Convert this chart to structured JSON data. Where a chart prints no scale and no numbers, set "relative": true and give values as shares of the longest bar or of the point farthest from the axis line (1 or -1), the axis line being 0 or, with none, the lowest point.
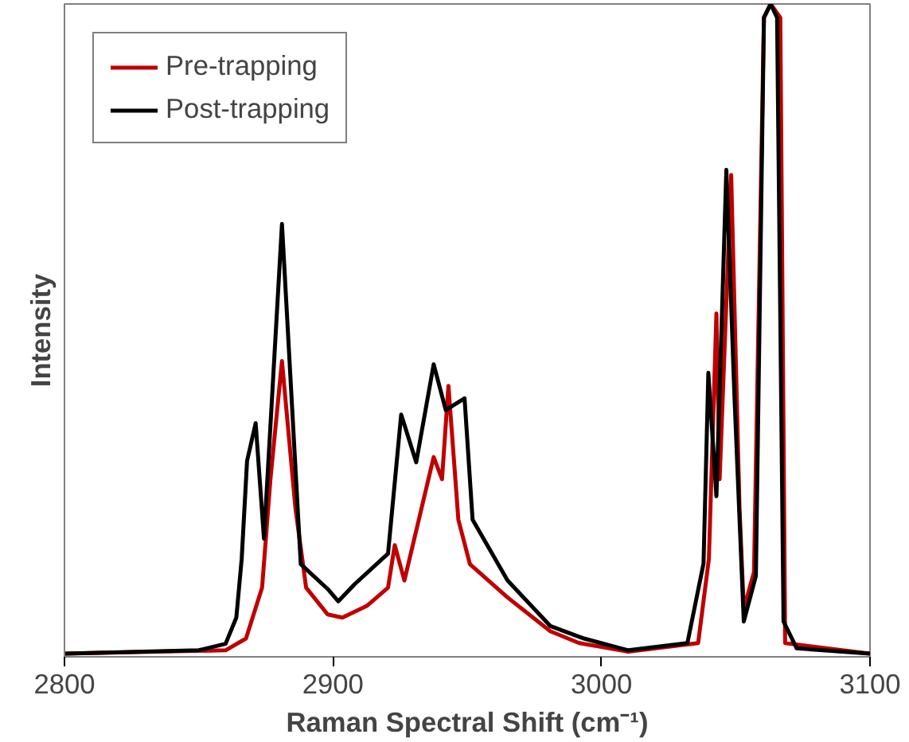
{
  "chart_data": {
    "type": "line",
    "relative": true,
    "xlabel": "Raman Spectral Shift (cm⁻¹)",
    "ylabel": "Intensity",
    "xlim": [
      2800,
      3100
    ],
    "xticks": [
      2800,
      2900,
      3000,
      3100
    ],
    "grid": false,
    "legend": "top left",
    "line_style": "solid",
    "marker": "none",
    "series": [
      {
        "name": "Pre-trapping",
        "color": "#c00000",
        "x": [
          2800,
          2860,
          2867.6,
          2873.6,
          2876.7,
          2881,
          2886,
          2890,
          2898,
          2903.5,
          2912.6,
          2920.5,
          2923,
          2926.6,
          2937.5,
          2940.6,
          2943,
          2946.7,
          2951,
          2965,
          2981,
          2991.7,
          3010,
          3036,
          3040,
          3042.8,
          3044,
          3048.3,
          3051.4,
          3053,
          3056.8,
          3060.5,
          3063,
          3066.6,
          3068.4,
          3100
        ],
        "values": [
          0.005,
          0.01,
          0.028,
          0.106,
          0.272,
          0.453,
          0.228,
          0.106,
          0.065,
          0.06,
          0.078,
          0.106,
          0.171,
          0.117,
          0.306,
          0.272,
          0.415,
          0.21,
          0.142,
          0.091,
          0.039,
          0.021,
          0.008,
          0.021,
          0.15,
          0.526,
          0.272,
          0.738,
          0.228,
          0.073,
          0.13,
          0.979,
          1.0,
          0.979,
          0.021,
          0.005
        ]
      },
      {
        "name": "Post-trapping",
        "color": "#000000",
        "x": [
          2800,
          2850,
          2860,
          2864,
          2866,
          2868,
          2871.2,
          2874.3,
          2881,
          2888,
          2898,
          2902,
          2908,
          2920.5,
          2925.4,
          2931,
          2937.5,
          2942,
          2949,
          2952,
          2965,
          2981,
          2993.5,
          3010,
          3032,
          3038,
          3039.8,
          3042.8,
          3046.5,
          3049.5,
          3053,
          3057.5,
          3060.5,
          3063,
          3065.4,
          3067.8,
          3072.7,
          3100
        ],
        "values": [
          0.005,
          0.01,
          0.02,
          0.06,
          0.15,
          0.3,
          0.358,
          0.181,
          0.663,
          0.142,
          0.104,
          0.085,
          0.111,
          0.158,
          0.371,
          0.298,
          0.448,
          0.378,
          0.396,
          0.21,
          0.117,
          0.047,
          0.028,
          0.01,
          0.021,
          0.143,
          0.435,
          0.246,
          0.746,
          0.401,
          0.054,
          0.124,
          0.979,
          1.0,
          0.979,
          0.054,
          0.013,
          0.005
        ]
      }
    ]
  }
}
